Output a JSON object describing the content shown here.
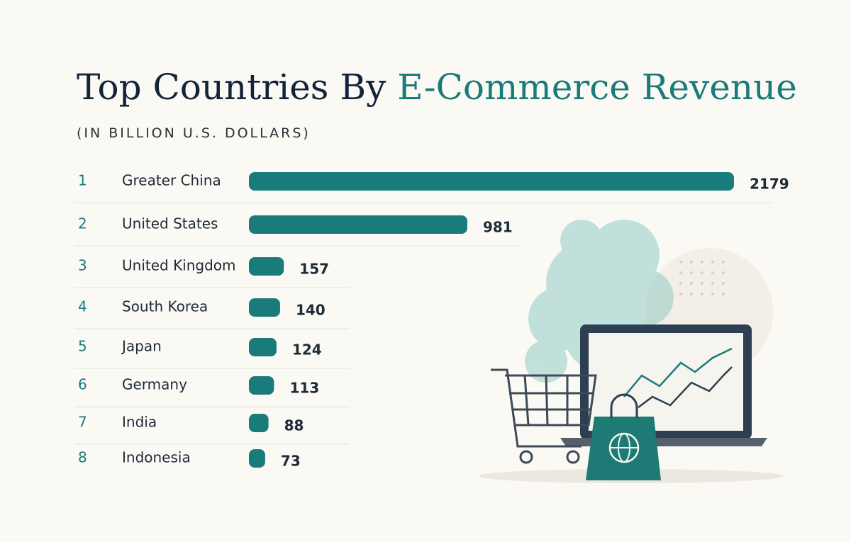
{
  "chart_data": {
    "type": "bar",
    "title": "Top Countries By",
    "title_highlight": "E-Commerce Revenue",
    "subtitle": "(IN BILLION U.S. DOLLARS)",
    "ranks": [
      1,
      2,
      3,
      4,
      5,
      6,
      7,
      8
    ],
    "categories": [
      "Greater China",
      "United States",
      "United Kingdom",
      "South Korea",
      "Japan",
      "Germany",
      "India",
      "Indonesia"
    ],
    "values": [
      2179,
      981,
      157,
      140,
      124,
      113,
      88,
      73
    ],
    "color": "#1a7b7b"
  }
}
